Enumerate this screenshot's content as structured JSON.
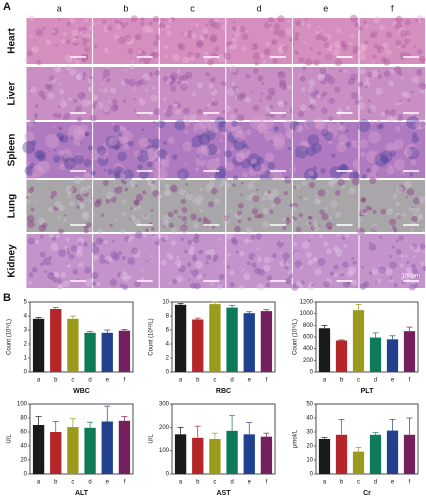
{
  "panel_a": {
    "label": "A",
    "columns": [
      "a",
      "b",
      "c",
      "d",
      "e",
      "f"
    ],
    "rows": [
      "Heart",
      "Liver",
      "Spleen",
      "Lung",
      "Kidney"
    ],
    "scale_label": "100μm"
  },
  "panel_b_label": "B",
  "chart_data": [
    {
      "type": "bar",
      "xlabel": "WBC",
      "ylabel": "Count (10⁹/L)",
      "categories": [
        "a",
        "b",
        "c",
        "d",
        "e",
        "f"
      ],
      "values": [
        3.8,
        4.5,
        3.8,
        2.8,
        2.8,
        2.95
      ],
      "errors": [
        0.1,
        0.1,
        0.2,
        0.1,
        0.2,
        0.08
      ],
      "colors": [
        "#1a1a1a",
        "#b5262b",
        "#9c9a1c",
        "#0f7a58",
        "#21408f",
        "#74205e"
      ],
      "ylim": [
        0,
        5
      ],
      "yticks": [
        0,
        1,
        2,
        3,
        4,
        5
      ]
    },
    {
      "type": "bar",
      "xlabel": "RBC",
      "ylabel": "Count (10¹²/L)",
      "categories": [
        "a",
        "b",
        "c",
        "d",
        "e",
        "f"
      ],
      "values": [
        9.6,
        7.5,
        9.7,
        9.2,
        8.4,
        8.7
      ],
      "errors": [
        0.2,
        0.2,
        0.3,
        0.3,
        0.2,
        0.2
      ],
      "colors": [
        "#1a1a1a",
        "#b5262b",
        "#9c9a1c",
        "#0f7a58",
        "#21408f",
        "#74205e"
      ],
      "ylim": [
        0,
        10
      ],
      "yticks": [
        0,
        2,
        4,
        6,
        8,
        10
      ]
    },
    {
      "type": "bar",
      "xlabel": "PLT",
      "ylabel": "Count (10⁹/L)",
      "categories": [
        "a",
        "b",
        "c",
        "d",
        "e",
        "f"
      ],
      "values": [
        750,
        540,
        1060,
        590,
        560,
        700
      ],
      "errors": [
        50,
        10,
        100,
        80,
        60,
        70
      ],
      "colors": [
        "#1a1a1a",
        "#b5262b",
        "#9c9a1c",
        "#0f7a58",
        "#21408f",
        "#74205e"
      ],
      "ylim": [
        0,
        1200
      ],
      "yticks": [
        0,
        200,
        400,
        600,
        800,
        1000,
        1200
      ]
    },
    {
      "type": "bar",
      "xlabel": "ALT",
      "ylabel": "U/L",
      "categories": [
        "a",
        "b",
        "c",
        "d",
        "e",
        "f"
      ],
      "values": [
        70,
        60,
        67,
        66,
        75,
        76
      ],
      "errors": [
        12,
        15,
        12,
        8,
        22,
        6
      ],
      "colors": [
        "#1a1a1a",
        "#b5262b",
        "#9c9a1c",
        "#0f7a58",
        "#21408f",
        "#74205e"
      ],
      "ylim": [
        0,
        100
      ],
      "yticks": [
        0,
        20,
        40,
        60,
        80,
        100
      ]
    },
    {
      "type": "bar",
      "xlabel": "AST",
      "ylabel": "U/L",
      "categories": [
        "a",
        "b",
        "c",
        "d",
        "e",
        "f"
      ],
      "values": [
        170,
        155,
        150,
        185,
        170,
        160
      ],
      "errors": [
        30,
        50,
        25,
        65,
        50,
        15
      ],
      "colors": [
        "#1a1a1a",
        "#b5262b",
        "#9c9a1c",
        "#0f7a58",
        "#21408f",
        "#74205e"
      ],
      "ylim": [
        0,
        300
      ],
      "yticks": [
        0,
        100,
        200,
        300
      ]
    },
    {
      "type": "bar",
      "xlabel": "Cr",
      "ylabel": "μmol/L",
      "categories": [
        "a",
        "b",
        "c",
        "d",
        "e",
        "f"
      ],
      "values": [
        25,
        28,
        16,
        28,
        31,
        28
      ],
      "errors": [
        1,
        11,
        3,
        1.5,
        8,
        12
      ],
      "colors": [
        "#1a1a1a",
        "#b5262b",
        "#9c9a1c",
        "#0f7a58",
        "#21408f",
        "#74205e"
      ],
      "ylim": [
        0,
        50
      ],
      "yticks": [
        0,
        10,
        20,
        30,
        40,
        50
      ]
    }
  ]
}
